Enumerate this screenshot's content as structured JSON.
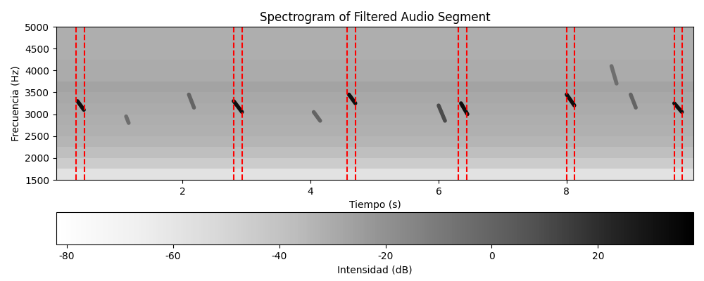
{
  "chart_data": {
    "type": "heatmap",
    "title": "Spectrogram of Filtered Audio Segment",
    "x_label": "Tiempo (s)",
    "y_label": "Frecuencia (Hz)",
    "xlim": [
      0.03,
      9.98
    ],
    "ylim": [
      1500,
      5000
    ],
    "xticks": [
      2,
      4,
      6,
      8
    ],
    "yticks": [
      1500,
      2000,
      2500,
      3000,
      3500,
      4000,
      4500,
      5000
    ],
    "color": "Greys",
    "time_bins": [
      0.03,
      1,
      2,
      3,
      4,
      5,
      6,
      7,
      8,
      9,
      9.98
    ],
    "freq_bins": [
      1500,
      1750,
      2000,
      2250,
      2500,
      2750,
      3000,
      3250,
      3500,
      3750,
      4000,
      4250,
      4500,
      4750,
      5000
    ],
    "cells": [
      [
        -58,
        -58,
        -58,
        -58,
        -58,
        -58,
        -58,
        -58,
        -58,
        -58
      ],
      [
        -45,
        -45,
        -45,
        -45,
        -45,
        -45,
        -45,
        -45,
        -45,
        -45
      ],
      [
        -38,
        -38,
        -38,
        -38,
        -38,
        -38,
        -38,
        -38,
        -38,
        -38
      ],
      [
        -34,
        -34,
        -34,
        -34,
        -34,
        -34,
        -34,
        -34,
        -34,
        -34
      ],
      [
        -32,
        -32,
        -32,
        -32,
        -32,
        -32,
        -32,
        -32,
        -32,
        -32
      ],
      [
        -31,
        -31,
        -31,
        -31,
        -31,
        -31,
        -31,
        -31,
        -31,
        -31
      ],
      [
        -30,
        -30,
        -30,
        -30,
        -30,
        -30,
        -30,
        -30,
        -30,
        -30
      ],
      [
        -29,
        -29,
        -29,
        -29,
        -29,
        -29,
        -29,
        -29,
        -29,
        -29
      ],
      [
        -27,
        -27,
        -27,
        -27,
        -27,
        -27,
        -27,
        -27,
        -27,
        -27
      ],
      [
        -30,
        -30,
        -30,
        -30,
        -30,
        -30,
        -30,
        -30,
        -30,
        -30
      ],
      [
        -30,
        -30,
        -30,
        -30,
        -30,
        -30,
        -30,
        -30,
        -30,
        -30
      ],
      [
        -31,
        -31,
        -31,
        -31,
        -31,
        -31,
        -31,
        -31,
        -31,
        -31
      ],
      [
        -31,
        -31,
        -31,
        -31,
        -31,
        -31,
        -31,
        -31,
        -31,
        -31
      ],
      [
        -31,
        -31,
        -31,
        -31,
        -31,
        -31,
        -31,
        -31,
        -31,
        -31
      ]
    ],
    "calls": [
      {
        "t": [
          0.36,
          0.46
        ],
        "f": [
          3300,
          3100
        ],
        "intensity": 32
      },
      {
        "t": [
          1.12,
          1.16
        ],
        "f": [
          2950,
          2800
        ],
        "intensity": -5
      },
      {
        "t": [
          2.1,
          2.18
        ],
        "f": [
          3450,
          3150
        ],
        "intensity": 0
      },
      {
        "t": [
          2.8,
          2.93
        ],
        "f": [
          3300,
          3050
        ],
        "intensity": 32
      },
      {
        "t": [
          4.05,
          4.15
        ],
        "f": [
          3050,
          2850
        ],
        "intensity": 0
      },
      {
        "t": [
          4.6,
          4.7
        ],
        "f": [
          3450,
          3250
        ],
        "intensity": 32
      },
      {
        "t": [
          6.0,
          6.1
        ],
        "f": [
          3200,
          2850
        ],
        "intensity": 10
      },
      {
        "t": [
          6.35,
          6.45
        ],
        "f": [
          3250,
          3000
        ],
        "intensity": 32
      },
      {
        "t": [
          8.0,
          8.12
        ],
        "f": [
          3450,
          3200
        ],
        "intensity": 32
      },
      {
        "t": [
          8.7,
          8.78
        ],
        "f": [
          4100,
          3700
        ],
        "intensity": -5
      },
      {
        "t": [
          9.0,
          9.08
        ],
        "f": [
          3450,
          3150
        ],
        "intensity": 0
      },
      {
        "t": [
          9.68,
          9.8
        ],
        "f": [
          3250,
          3050
        ],
        "intensity": 32
      }
    ],
    "markers": {
      "x": [
        0.34,
        0.47,
        2.8,
        2.93,
        4.57,
        4.7,
        6.31,
        6.44,
        8.0,
        8.12,
        9.68,
        9.8
      ],
      "color": "red",
      "line_style": "dashed"
    },
    "colorbar": {
      "label": "Intensidad (dB)",
      "range": [
        -82,
        38
      ],
      "ticks": [
        -80,
        -60,
        -40,
        -20,
        0,
        20
      ]
    }
  }
}
